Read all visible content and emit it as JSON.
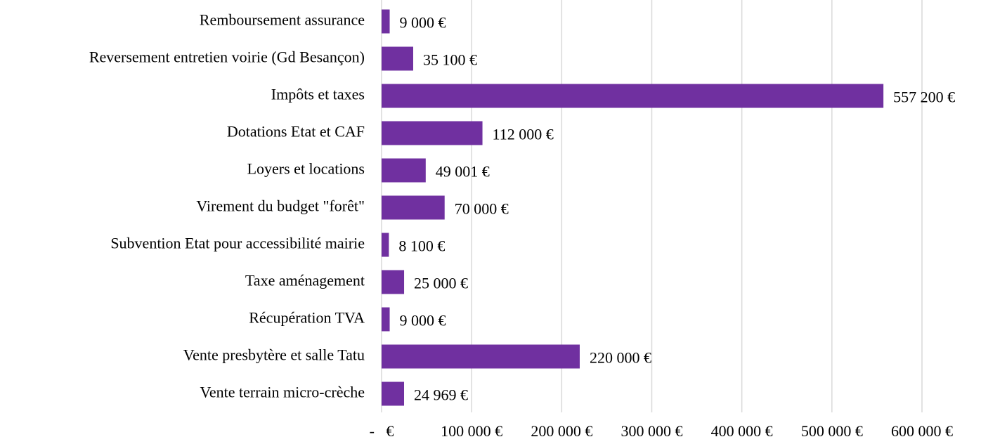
{
  "chart_data": {
    "type": "barh",
    "categories": [
      "Remboursement assurance",
      "Reversement entretien voirie (Gd Besançon)",
      "Impôts et taxes",
      "Dotations Etat et CAF",
      "Loyers et locations",
      "Virement du budget \"forêt\"",
      "Subvention Etat pour accessibilité mairie",
      "Taxe aménagement",
      "Récupération TVA",
      "Vente presbytère et salle Tatu",
      "Vente terrain micro-crèche"
    ],
    "values": [
      9000,
      35100,
      557200,
      112000,
      49001,
      70000,
      8100,
      25000,
      9000,
      220000,
      24969
    ],
    "value_labels": [
      "9 000 €",
      "35 100 €",
      "557 200 €",
      "112 000 €",
      "49 001 €",
      "70 000 €",
      "8 100 €",
      "25 000 €",
      "9 000 €",
      "220 000 €",
      "24 969 €"
    ],
    "color": "#7030a0",
    "xlim": [
      0,
      600000
    ],
    "xticks": [
      {
        "value": 0,
        "label": "-   €"
      },
      {
        "value": 100000,
        "label": "100 000 €"
      },
      {
        "value": 200000,
        "label": "200 000 €"
      },
      {
        "value": 300000,
        "label": "300 000 €"
      },
      {
        "value": 400000,
        "label": "400 000 €"
      },
      {
        "value": 500000,
        "label": "500 000 €"
      },
      {
        "value": 600000,
        "label": "600 000 €"
      }
    ],
    "grid": true
  }
}
